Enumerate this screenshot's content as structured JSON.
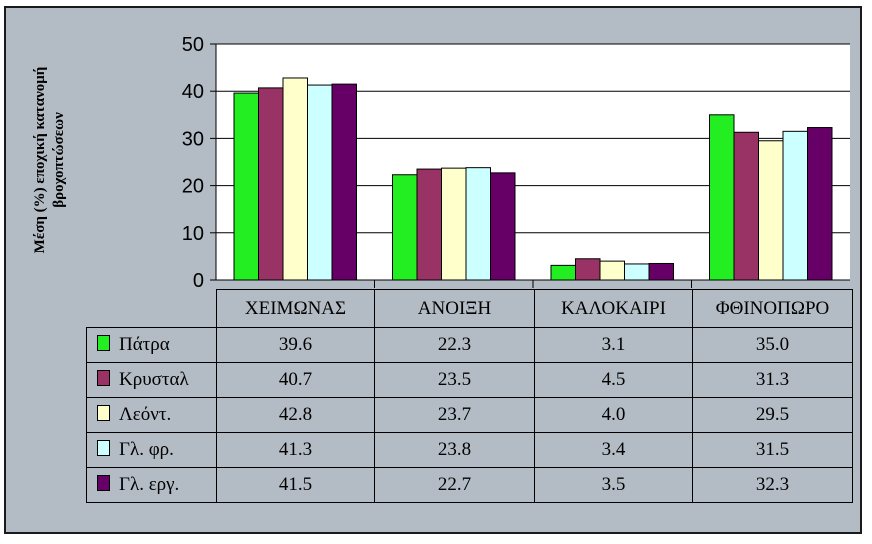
{
  "chart_data": {
    "type": "bar",
    "ylabel": "Μέση (%) εποχική κατανομή βροχοπτώσεων",
    "ylim": [
      0,
      50
    ],
    "yticks": [
      0,
      10,
      20,
      30,
      40,
      50
    ],
    "grid": true,
    "categories": [
      "ΧΕΙΜΩΝΑΣ",
      "ΑΝΟΙΞΗ",
      "ΚΑΛΟΚΑΙΡΙ",
      "ΦΘΙΝΟΠΩΡΟ"
    ],
    "series": [
      {
        "name": "Πάτρα",
        "color": "#22ee22",
        "values": [
          "39.6",
          "22.3",
          "3.1",
          "35.0"
        ]
      },
      {
        "name": "Κρυσταλ",
        "color": "#993366",
        "values": [
          "40.7",
          "23.5",
          "4.5",
          "31.3"
        ]
      },
      {
        "name": "Λεόντ.",
        "color": "#ffffcc",
        "values": [
          "42.8",
          "23.7",
          "4.0",
          "29.5"
        ]
      },
      {
        "name": "Γλ. φρ.",
        "color": "#ccffff",
        "values": [
          "41.3",
          "23.8",
          "3.4",
          "31.5"
        ]
      },
      {
        "name": "Γλ. εργ.",
        "color": "#660066",
        "values": [
          "41.5",
          "22.7",
          "3.5",
          "32.3"
        ]
      }
    ]
  }
}
